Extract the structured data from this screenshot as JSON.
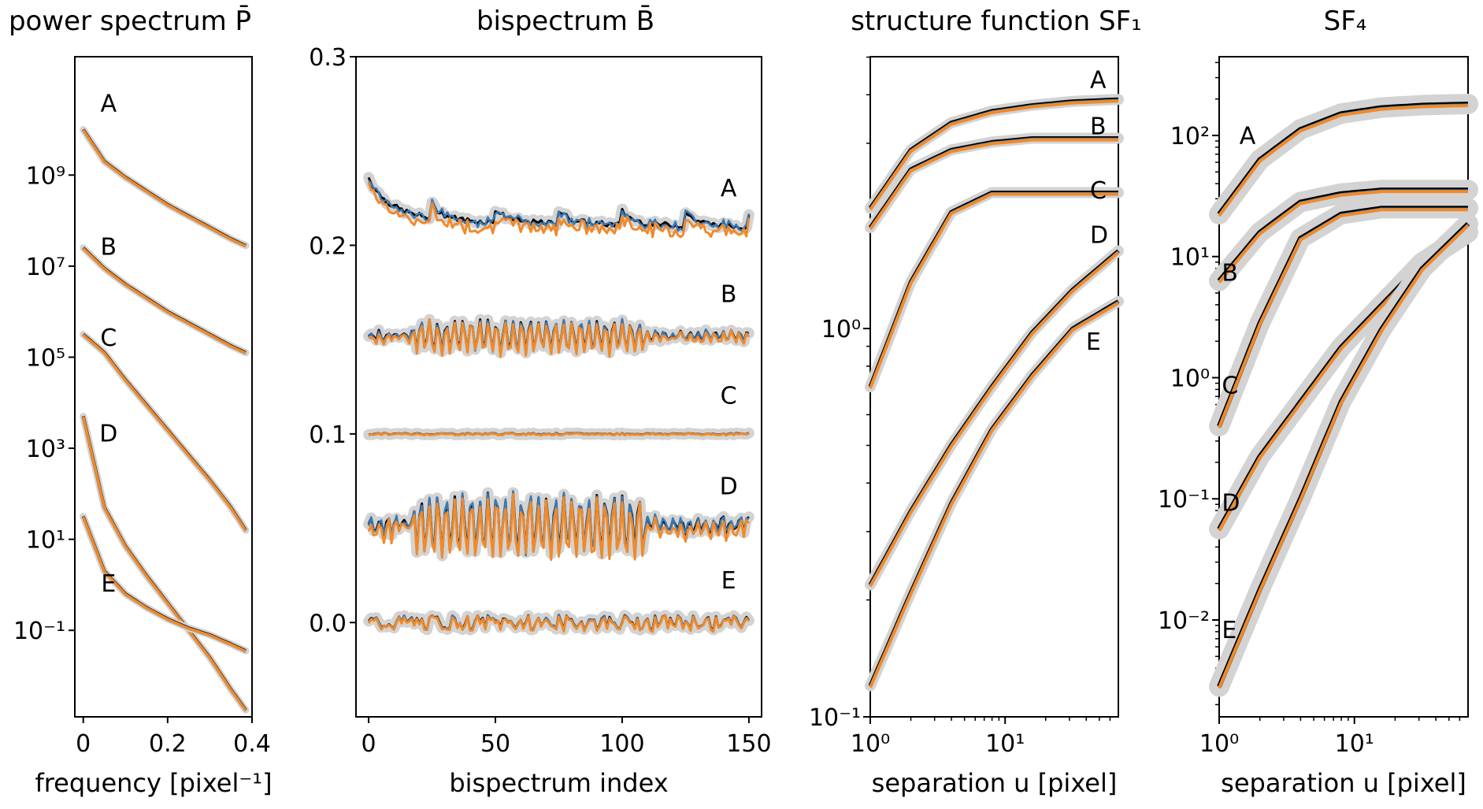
{
  "colors": {
    "band": "#d3d3d3",
    "truth": "#000000",
    "model_blue": "#3a79b5",
    "model_orange": "#f08a2a"
  },
  "chart_data": [
    {
      "type": "line",
      "title": "power spectrum P̄",
      "xlabel": "frequency [pixel⁻¹]",
      "ylabel": "",
      "yscale": "log",
      "xlim": [
        -0.02,
        0.4
      ],
      "ylim_log10": [
        -2.9,
        11.6
      ],
      "xticks": [
        0,
        0.2,
        0.4
      ],
      "xtick_labels": [
        "0",
        "0.2",
        "0.4"
      ],
      "yticks_log10": [
        9,
        7,
        5,
        3,
        1,
        -1
      ],
      "ytick_labels": [
        "10⁹",
        "10⁷",
        "10⁵",
        "10³",
        "10¹",
        "10⁻¹"
      ],
      "x": [
        0,
        0.05,
        0.1,
        0.15,
        0.2,
        0.25,
        0.3,
        0.35,
        0.385
      ],
      "series": [
        {
          "name": "A",
          "label_pos": [
            0.06,
            10.4
          ],
          "log10_values": [
            10.0,
            9.3,
            8.95,
            8.65,
            8.35,
            8.1,
            7.85,
            7.6,
            7.45
          ]
        },
        {
          "name": "B",
          "label_pos": [
            0.06,
            7.25
          ],
          "log10_values": [
            7.4,
            6.95,
            6.6,
            6.3,
            6.0,
            5.75,
            5.5,
            5.25,
            5.1
          ]
        },
        {
          "name": "C",
          "label_pos": [
            0.06,
            5.25
          ],
          "log10_values": [
            5.5,
            5.1,
            4.5,
            3.95,
            3.4,
            2.85,
            2.3,
            1.7,
            1.2
          ]
        },
        {
          "name": "D",
          "label_pos": [
            0.06,
            3.15
          ],
          "log10_values": [
            3.7,
            1.7,
            0.85,
            0.2,
            -0.4,
            -1.0,
            -1.6,
            -2.3,
            -2.75
          ]
        },
        {
          "name": "E",
          "label_pos": [
            0.06,
            -0.15
          ],
          "log10_values": [
            1.5,
            0.3,
            -0.2,
            -0.5,
            -0.75,
            -0.95,
            -1.1,
            -1.3,
            -1.45
          ]
        }
      ]
    },
    {
      "type": "line",
      "title": "bispectrum B̄",
      "xlabel": "bispectrum index",
      "ylabel": "",
      "xlim": [
        -5,
        155
      ],
      "ylim": [
        -0.05,
        0.3
      ],
      "xticks": [
        0,
        50,
        100,
        150
      ],
      "xtick_labels": [
        "0",
        "50",
        "100",
        "150"
      ],
      "yticks": [
        0.0,
        0.1,
        0.2,
        0.3
      ],
      "ytick_labels": [
        "0.0",
        "0.1",
        "0.2",
        "0.3"
      ],
      "series": [
        {
          "name": "A",
          "label_pos": [
            142,
            0.226
          ],
          "base": 0.21,
          "amplitude": 0.02,
          "kind": "decay"
        },
        {
          "name": "B",
          "label_pos": [
            142,
            0.17
          ],
          "base": 0.152,
          "amplitude": 0.008,
          "kind": "oscillate"
        },
        {
          "name": "C",
          "label_pos": [
            142,
            0.116
          ],
          "base": 0.1,
          "amplitude": 0.001,
          "kind": "flat"
        },
        {
          "name": "D",
          "label_pos": [
            142,
            0.068
          ],
          "base": 0.052,
          "amplitude": 0.015,
          "kind": "oscillate"
        },
        {
          "name": "E",
          "label_pos": [
            142,
            0.018
          ],
          "base": 0.0,
          "amplitude": 0.004,
          "kind": "noise"
        }
      ]
    },
    {
      "type": "line",
      "title": "structure function SF₁",
      "xlabel": "separation u [pixel]",
      "ylabel": "",
      "xscale": "log",
      "yscale": "log",
      "xlim_log10": [
        0,
        1.84
      ],
      "ylim_log10": [
        -1.0,
        0.7
      ],
      "xticks_log10": [
        0,
        1
      ],
      "xtick_labels": [
        "10⁰",
        "10¹"
      ],
      "yticks_log10": [
        0,
        -1
      ],
      "ytick_labels": [
        "10⁰",
        "10⁻¹"
      ],
      "x_log10": [
        0,
        0.3,
        0.6,
        0.9,
        1.2,
        1.5,
        1.84
      ],
      "series": [
        {
          "name": "A",
          "label_pos": [
            1.63,
            0.62
          ],
          "log10_values": [
            0.31,
            0.46,
            0.53,
            0.56,
            0.575,
            0.585,
            0.59
          ]
        },
        {
          "name": "B",
          "label_pos": [
            1.63,
            0.5
          ],
          "log10_values": [
            0.26,
            0.41,
            0.46,
            0.48,
            0.49,
            0.49,
            0.49
          ]
        },
        {
          "name": "C",
          "label_pos": [
            1.63,
            0.335
          ],
          "log10_values": [
            -0.15,
            0.12,
            0.3,
            0.35,
            0.35,
            0.35,
            0.35
          ]
        },
        {
          "name": "D",
          "label_pos": [
            1.63,
            0.22
          ],
          "log10_values": [
            -0.66,
            -0.47,
            -0.3,
            -0.15,
            -0.01,
            0.1,
            0.2
          ]
        },
        {
          "name": "E",
          "label_pos": [
            1.6,
            -0.055
          ],
          "log10_values": [
            -0.92,
            -0.68,
            -0.45,
            -0.26,
            -0.12,
            0.0,
            0.07
          ]
        }
      ]
    },
    {
      "type": "line",
      "title": "SF₄",
      "xlabel": "separation u [pixel]",
      "ylabel": "",
      "xscale": "log",
      "yscale": "log",
      "xlim_log10": [
        0,
        1.84
      ],
      "ylim_log10": [
        -2.8,
        2.65
      ],
      "xticks_log10": [
        0,
        1
      ],
      "xtick_labels": [
        "10⁰",
        "10¹"
      ],
      "yticks_log10": [
        2,
        1,
        0,
        -1,
        -2
      ],
      "ytick_labels": [
        "10²",
        "10¹",
        "10⁰",
        "10⁻¹",
        "10⁻²"
      ],
      "x_log10": [
        0,
        0.3,
        0.6,
        0.9,
        1.2,
        1.5,
        1.84
      ],
      "series": [
        {
          "name": "A",
          "label_pos": [
            0.15,
            1.93
          ],
          "log10_values": [
            1.35,
            1.8,
            2.05,
            2.18,
            2.23,
            2.25,
            2.26
          ]
        },
        {
          "name": "B",
          "label_pos": [
            0.02,
            0.8
          ],
          "log10_values": [
            0.8,
            1.2,
            1.45,
            1.52,
            1.55,
            1.55,
            1.55
          ]
        },
        {
          "name": "C",
          "label_pos": [
            0.02,
            -0.13
          ],
          "log10_values": [
            -0.4,
            0.45,
            1.15,
            1.35,
            1.4,
            1.4,
            1.4
          ]
        },
        {
          "name": "D",
          "label_pos": [
            0.02,
            -1.1
          ],
          "log10_values": [
            -1.25,
            -0.65,
            -0.2,
            0.25,
            0.6,
            0.95,
            1.2
          ]
        },
        {
          "name": "E",
          "label_pos": [
            0.02,
            -2.15
          ],
          "log10_values": [
            -2.55,
            -1.75,
            -1.0,
            -0.2,
            0.4,
            0.9,
            1.27
          ]
        }
      ]
    }
  ]
}
